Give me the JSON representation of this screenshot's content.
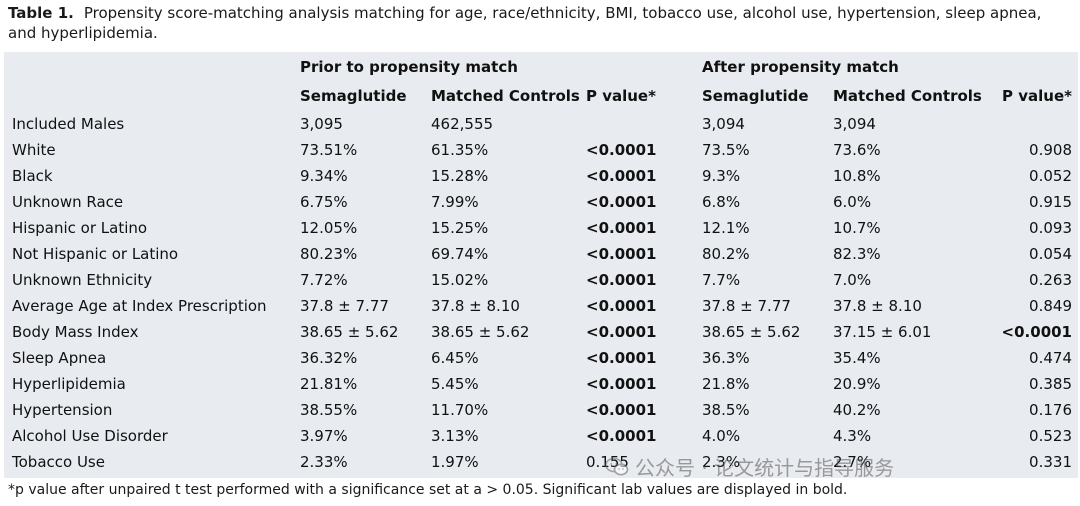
{
  "caption": {
    "label": "Table 1.",
    "text": "Propensity score-matching analysis matching for age, race/ethnicity, BMI, tobacco use, alcohol use, hypertension, sleep apnea, and hyperlipidemia."
  },
  "table": {
    "group_headers": [
      "Prior to propensity match",
      "After propensity match"
    ],
    "column_headers": [
      "Semaglutide",
      "Matched Controls",
      "P value*",
      "Semaglutide",
      "Matched Controls",
      "P value*"
    ],
    "rows": [
      {
        "label": "Included Males",
        "cells": [
          "3,095",
          "462,555",
          "",
          "3,094",
          "3,094",
          ""
        ]
      },
      {
        "label": "White",
        "cells": [
          "73.51%",
          "61.35%",
          "<0.0001",
          "73.5%",
          "73.6%",
          "0.908"
        ]
      },
      {
        "label": "Black",
        "cells": [
          "9.34%",
          "15.28%",
          "<0.0001",
          "9.3%",
          "10.8%",
          "0.052"
        ]
      },
      {
        "label": "Unknown Race",
        "cells": [
          "6.75%",
          "7.99%",
          "<0.0001",
          "6.8%",
          "6.0%",
          "0.915"
        ]
      },
      {
        "label": "Hispanic or Latino",
        "cells": [
          "12.05%",
          "15.25%",
          "<0.0001",
          "12.1%",
          "10.7%",
          "0.093"
        ]
      },
      {
        "label": "Not Hispanic or Latino",
        "cells": [
          "80.23%",
          "69.74%",
          "<0.0001",
          "80.2%",
          "82.3%",
          "0.054"
        ]
      },
      {
        "label": "Unknown Ethnicity",
        "cells": [
          "7.72%",
          "15.02%",
          "<0.0001",
          "7.7%",
          "7.0%",
          "0.263"
        ]
      },
      {
        "label": "Average Age at Index Prescription",
        "cells": [
          "37.8 ± 7.77",
          "37.8 ± 8.10",
          "<0.0001",
          "37.8 ± 7.77",
          "37.8 ± 8.10",
          "0.849"
        ]
      },
      {
        "label": "Body Mass Index",
        "cells": [
          "38.65 ± 5.62",
          "38.65 ± 5.62",
          "<0.0001",
          "38.65 ± 5.62",
          "37.15 ± 6.01",
          "<0.0001"
        ]
      },
      {
        "label": "Sleep Apnea",
        "cells": [
          "36.32%",
          "6.45%",
          "<0.0001",
          "36.3%",
          "35.4%",
          "0.474"
        ]
      },
      {
        "label": "Hyperlipidemia",
        "cells": [
          "21.81%",
          "5.45%",
          "<0.0001",
          "21.8%",
          "20.9%",
          "0.385"
        ]
      },
      {
        "label": "Hypertension",
        "cells": [
          "38.55%",
          "11.70%",
          "<0.0001",
          "38.5%",
          "40.2%",
          "0.176"
        ]
      },
      {
        "label": "Alcohol Use Disorder",
        "cells": [
          "3.97%",
          "3.13%",
          "<0.0001",
          "4.0%",
          "4.3%",
          "0.523"
        ]
      },
      {
        "label": "Tobacco Use",
        "cells": [
          "2.33%",
          "1.97%",
          "0.155",
          "2.3%",
          "2.7%",
          "0.331"
        ]
      }
    ],
    "bold_values": [
      "<0.0001"
    ]
  },
  "footnote": "*p value after unpaired t test performed with a significance set at a > 0.05. Significant lab values are displayed in bold.",
  "watermark": {
    "text": "公众号 · 论文统计与指导服务",
    "icon": "wechat-icon"
  }
}
